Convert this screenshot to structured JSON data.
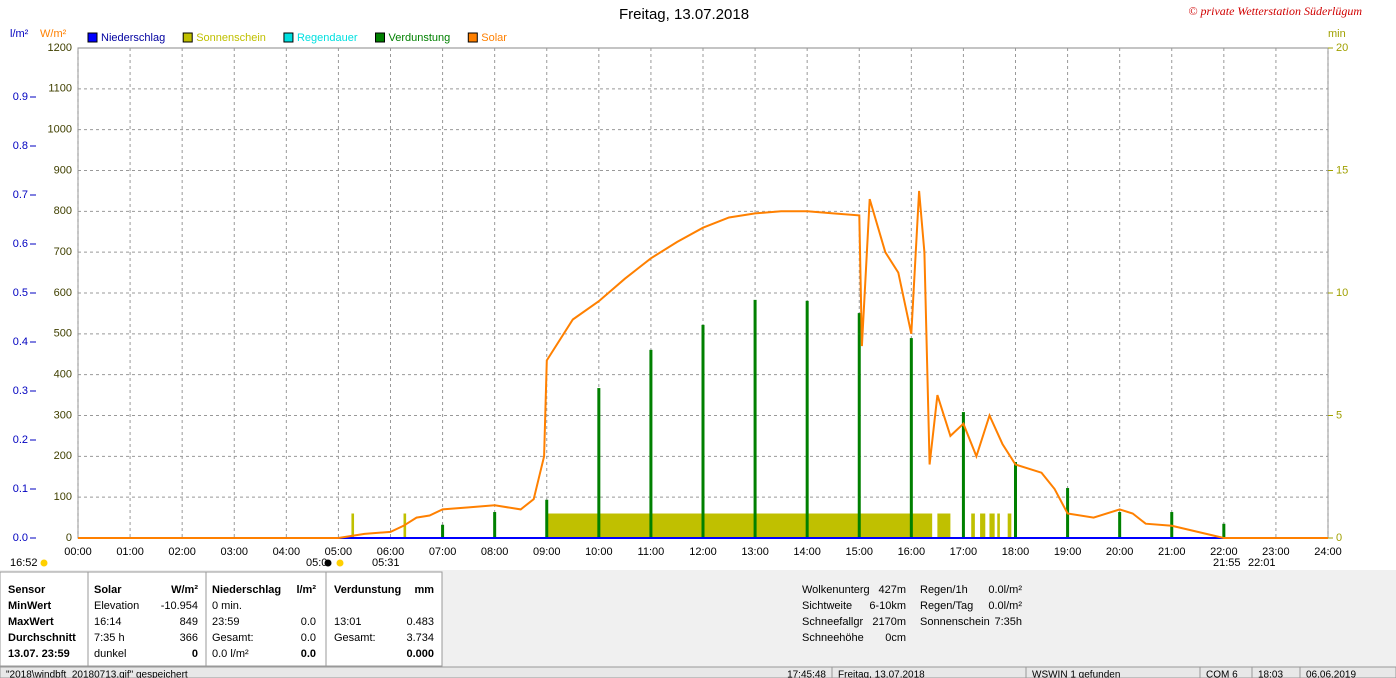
{
  "chart_data": {
    "type": "line",
    "title": "Freitag, 13.07.2018",
    "credit": "© private Wetterstation Süderlügum",
    "axis_labels": {
      "y3": "l/m²",
      "y": "W/m²",
      "y2": "min"
    },
    "xlim": [
      0,
      24
    ],
    "xticks": [
      {
        "value": 0,
        "label": "00:00"
      },
      {
        "value": 1,
        "label": "01:00"
      },
      {
        "value": 2,
        "label": "02:00"
      },
      {
        "value": 3,
        "label": "03:00"
      },
      {
        "value": 4,
        "label": "04:00"
      },
      {
        "value": 5,
        "label": "05:00"
      },
      {
        "value": 6,
        "label": "06:00"
      },
      {
        "value": 7,
        "label": "07:00"
      },
      {
        "value": 8,
        "label": "08:00"
      },
      {
        "value": 9,
        "label": "09:00"
      },
      {
        "value": 10,
        "label": "10:00"
      },
      {
        "value": 11,
        "label": "11:00"
      },
      {
        "value": 12,
        "label": "12:00"
      },
      {
        "value": 13,
        "label": "13:00"
      },
      {
        "value": 14,
        "label": "14:00"
      },
      {
        "value": 15,
        "label": "15:00"
      },
      {
        "value": 16,
        "label": "16:00"
      },
      {
        "value": 17,
        "label": "17:00"
      },
      {
        "value": 18,
        "label": "18:00"
      },
      {
        "value": 19,
        "label": "19:00"
      },
      {
        "value": 20,
        "label": "20:00"
      },
      {
        "value": 21,
        "label": "21:00"
      },
      {
        "value": 22,
        "label": "22:00"
      },
      {
        "value": 23,
        "label": "23:00"
      },
      {
        "value": 24,
        "label": "24:00"
      }
    ],
    "ylim": [
      0,
      1200
    ],
    "yticks": [
      0,
      100,
      200,
      300,
      400,
      500,
      600,
      700,
      800,
      900,
      1000,
      1100,
      1200
    ],
    "y2lim": [
      0,
      20
    ],
    "y2ticks": [
      0,
      5,
      10,
      15,
      20
    ],
    "y3lim": [
      0,
      1
    ],
    "y3ticks": [
      {
        "value": 0,
        "label": "0.0"
      },
      0.1,
      0.2,
      0.3,
      0.4,
      0.5,
      0.6,
      0.7,
      0.8,
      0.9
    ],
    "grid": true,
    "series": [
      {
        "name": "Niederschlag",
        "color": "#0000ff",
        "kind": "line",
        "axis": "y3",
        "x": [
          0,
          24
        ],
        "values": [
          0,
          0
        ]
      },
      {
        "name": "Sonnenschein",
        "color": "#c0c000",
        "kind": "range",
        "axis": "y2",
        "ranges": [
          [
            5.25,
            5.3
          ],
          [
            6.25,
            6.3
          ],
          [
            9.0,
            16.4
          ],
          [
            16.5,
            16.75
          ],
          [
            17.15,
            17.22
          ],
          [
            17.32,
            17.42
          ],
          [
            17.5,
            17.6
          ],
          [
            17.65,
            17.7
          ],
          [
            17.85,
            17.92
          ]
        ],
        "values": [
          1,
          1,
          1,
          1,
          1,
          1,
          1,
          1,
          1
        ]
      },
      {
        "name": "Regendauer",
        "color": "#00e0e0",
        "kind": "none",
        "axis": "y2",
        "x": [],
        "values": []
      },
      {
        "name": "Verdunstung",
        "color": "#008000",
        "kind": "bar",
        "axis": "y3",
        "x": [
          7,
          8,
          9,
          10,
          11,
          12,
          13,
          14,
          15,
          16,
          17,
          18,
          19,
          20,
          21,
          22
        ],
        "values": [
          0.027,
          0.053,
          0.078,
          0.306,
          0.384,
          0.435,
          0.486,
          0.484,
          0.459,
          0.408,
          0.257,
          0.155,
          0.102,
          0.053,
          0.053,
          0.029
        ]
      },
      {
        "name": "Solar",
        "color": "#ff8000",
        "kind": "line",
        "axis": "y",
        "x": [
          0,
          5,
          5.5,
          6,
          6.25,
          6.5,
          6.75,
          7,
          7.5,
          8,
          8.5,
          8.75,
          8.95,
          9,
          9.5,
          10,
          10.5,
          11,
          11.5,
          12,
          12.5,
          13,
          13.5,
          14,
          14.5,
          15,
          15.05,
          15.2,
          15.5,
          15.75,
          16,
          16.15,
          16.25,
          16.35,
          16.5,
          16.75,
          17,
          17.25,
          17.5,
          17.75,
          18,
          18.5,
          18.75,
          19,
          19.5,
          20,
          20.25,
          20.5,
          21,
          21.5,
          22,
          24
        ],
        "values": [
          0,
          0,
          10,
          15,
          30,
          50,
          55,
          70,
          75,
          80,
          70,
          95,
          200,
          435,
          535,
          580,
          635,
          685,
          725,
          760,
          785,
          795,
          800,
          800,
          795,
          790,
          470,
          830,
          700,
          650,
          500,
          850,
          700,
          180,
          350,
          250,
          280,
          200,
          300,
          230,
          180,
          160,
          120,
          60,
          50,
          70,
          60,
          35,
          30,
          15,
          0,
          0
        ]
      }
    ],
    "annotations": [
      "16:52",
      "05:0",
      "05:31",
      "21:55",
      "22:01"
    ]
  },
  "stats": {
    "columns": [
      {
        "header": [
          "Sensor"
        ],
        "rows": [
          [
            "MinWert"
          ],
          [
            "MaxWert"
          ],
          [
            "Durchschnitt"
          ],
          [
            "13.07. 23:59"
          ]
        ]
      },
      {
        "header": [
          "Solar",
          "W/m²"
        ],
        "rows": [
          [
            "Elevation",
            "-10.954"
          ],
          [
            "16:14",
            "849"
          ],
          [
            "7:35 h",
            "366"
          ],
          [
            "dunkel",
            "0"
          ]
        ]
      },
      {
        "header": [
          "Niederschlag",
          "l/m²"
        ],
        "rows": [
          [
            "0 min.",
            ""
          ],
          [
            "23:59",
            "0.0"
          ],
          [
            "Gesamt:",
            "0.0"
          ],
          [
            "0.0 l/m²",
            "0.0"
          ]
        ]
      },
      {
        "header": [
          "Verdunstung",
          "mm"
        ],
        "rows": [
          [
            "",
            ""
          ],
          [
            "13:01",
            "0.483"
          ],
          [
            "Gesamt:",
            "3.734"
          ],
          [
            "",
            "0.000"
          ]
        ]
      }
    ],
    "weather": [
      [
        "Wolkenunterg",
        "427m"
      ],
      [
        "Sichtweite",
        "6-10km"
      ],
      [
        "Schneefallgr",
        "2170m"
      ],
      [
        "Schneehöhe",
        "0cm"
      ]
    ],
    "rain": [
      [
        "Regen/1h",
        "0.0l/m²"
      ],
      [
        "Regen/Tag",
        "0.0l/m²"
      ],
      [
        "Sonnenschein",
        "7:35h"
      ]
    ]
  },
  "status_bar": [
    "\"2018\\windbft_20180713.gif\" gespeichert",
    "17:45:48",
    "Freitag, 13.07.2018",
    "WSWIN 1 gefunden",
    "COM 6",
    "18:03",
    "06.06.2019"
  ]
}
